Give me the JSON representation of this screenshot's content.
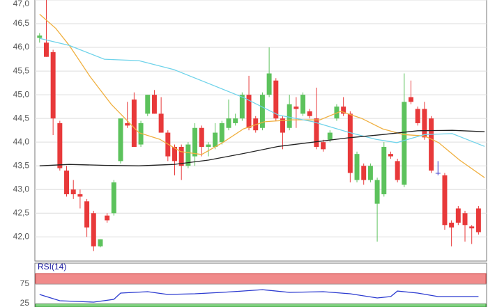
{
  "chart_data": [
    {
      "type": "candlestick",
      "xlim": [
        -0.7,
        66.2
      ],
      "ylim": [
        41.49,
        47.0
      ],
      "yticks": [
        {
          "value": 47.0,
          "label": "47,0"
        },
        {
          "value": 46.5,
          "label": "46,5"
        },
        {
          "value": 46.0,
          "label": "46,0"
        },
        {
          "value": 45.5,
          "label": "45,5"
        },
        {
          "value": 45.0,
          "label": "45,0"
        },
        {
          "value": 44.5,
          "label": "44,5"
        },
        {
          "value": 44.0,
          "label": "44,0"
        },
        {
          "value": 43.5,
          "label": "43,5"
        },
        {
          "value": 43.0,
          "label": "43,0"
        },
        {
          "value": 42.5,
          "label": "42,5"
        },
        {
          "value": 42.0,
          "label": "42,0"
        }
      ],
      "grid": true,
      "up_color": "#5cc25c",
      "down_color": "#e8393a",
      "flat_color": "#3a3acc",
      "open": [
        46.2,
        46.1,
        45.9,
        44.4,
        43.4,
        43.0,
        42.9,
        42.75,
        42.5,
        41.8,
        42.45,
        42.5,
        43.6,
        44.4,
        44.9,
        43.95,
        44.6,
        45.0,
        44.6,
        44.2,
        43.9,
        43.9,
        43.5,
        43.7,
        44.3,
        43.9,
        43.9,
        44.0,
        44.3,
        44.4,
        44.5,
        45.0,
        44.5,
        44.3,
        45.0,
        45.3,
        44.5,
        44.3,
        44.75,
        44.6,
        44.65,
        44.5,
        44.0,
        44.05,
        44.5,
        44.75,
        44.6,
        43.2,
        43.5,
        43.2,
        42.7,
        42.9,
        43.75,
        43.6,
        43.1,
        44.95,
        44.7,
        44.7,
        44.5,
        43.35,
        43.3,
        42.3,
        42.6,
        42.5,
        42.22,
        42.6
      ],
      "high": [
        46.3,
        47.0,
        45.95,
        44.45,
        43.5,
        43.2,
        43.0,
        42.8,
        42.55,
        41.95,
        42.5,
        43.2,
        44.5,
        44.85,
        45.05,
        44.45,
        45.0,
        45.1,
        44.95,
        44.25,
        43.95,
        43.95,
        44.0,
        44.4,
        44.35,
        44.0,
        44.4,
        44.45,
        44.9,
        44.6,
        45.05,
        45.4,
        44.55,
        45.05,
        46.0,
        45.35,
        44.55,
        45.0,
        44.95,
        45.05,
        44.7,
        45.15,
        44.05,
        44.25,
        44.8,
        44.95,
        44.65,
        43.8,
        43.55,
        43.55,
        43.25,
        44.0,
        43.8,
        43.65,
        45.45,
        45.3,
        44.75,
        44.85,
        44.55,
        43.6,
        43.35,
        42.35,
        42.65,
        42.55,
        42.25,
        42.65
      ],
      "low": [
        46.1,
        45.8,
        44.15,
        43.4,
        42.85,
        42.8,
        42.6,
        42.0,
        41.7,
        41.78,
        42.3,
        42.45,
        43.55,
        44.3,
        43.9,
        43.9,
        44.55,
        44.6,
        44.2,
        43.6,
        43.3,
        43.2,
        43.45,
        43.5,
        43.7,
        43.7,
        43.85,
        43.95,
        44.25,
        44.35,
        44.45,
        44.25,
        44.2,
        44.25,
        44.95,
        44.45,
        43.85,
        44.25,
        44.3,
        44.55,
        44.5,
        43.85,
        43.8,
        44.0,
        44.45,
        44.55,
        43.15,
        43.15,
        43.1,
        43.15,
        41.9,
        42.85,
        43.65,
        43.15,
        43.05,
        44.8,
        44.35,
        44.05,
        43.35,
        43.3,
        42.15,
        41.8,
        42.25,
        41.9,
        41.85,
        42.05
      ],
      "close": [
        46.25,
        45.8,
        44.5,
        43.45,
        42.9,
        42.9,
        42.85,
        42.2,
        41.8,
        41.95,
        42.35,
        43.15,
        44.5,
        44.35,
        43.9,
        44.4,
        45.0,
        44.6,
        44.2,
        43.7,
        43.6,
        43.5,
        43.95,
        44.3,
        43.9,
        43.95,
        44.2,
        44.4,
        44.5,
        44.5,
        45.0,
        44.3,
        44.25,
        45.0,
        45.45,
        44.5,
        44.2,
        44.8,
        44.7,
        45.0,
        44.55,
        43.9,
        43.85,
        44.2,
        44.75,
        44.6,
        43.35,
        43.75,
        43.2,
        43.5,
        43.2,
        43.9,
        43.7,
        43.2,
        44.85,
        44.85,
        44.4,
        44.1,
        43.4,
        43.35,
        42.25,
        42.2,
        42.3,
        42.25,
        42.18,
        42.1
      ],
      "lines": [
        {
          "color": "#f0b040",
          "x": [
            0,
            2.4,
            4.4,
            7.5,
            10.6,
            14.7,
            17.8,
            20.9,
            24,
            27.1,
            30.2,
            33.3,
            37.4,
            41.5,
            44.6,
            47.7,
            50.8,
            53.9,
            57,
            59.1,
            62.2,
            65.9
          ],
          "values": [
            46.7,
            46.4,
            46.04,
            45.38,
            44.8,
            44.2,
            44.06,
            43.8,
            43.74,
            43.99,
            44.28,
            44.43,
            44.47,
            44.47,
            44.65,
            44.5,
            44.28,
            44.16,
            44.13,
            43.99,
            43.62,
            43.25
          ]
        },
        {
          "color": "#6fd3ea",
          "x": [
            0,
            4.4,
            9.6,
            14.7,
            19.9,
            25,
            30.2,
            35.4,
            40.5,
            45.7,
            49.8,
            52.9,
            57,
            61.1,
            65.9
          ],
          "values": [
            46.19,
            46.04,
            45.75,
            45.72,
            45.53,
            45.24,
            44.94,
            44.57,
            44.43,
            44.21,
            44.06,
            43.99,
            44.16,
            44.18,
            43.91
          ]
        },
        {
          "color": "#222222",
          "x": [
            0,
            4.4,
            9.6,
            14.7,
            19.9,
            25,
            30.2,
            35.4,
            40.5,
            45.7,
            50.8,
            56,
            61.1,
            65.9
          ],
          "values": [
            43.5,
            43.53,
            43.51,
            43.5,
            43.53,
            43.62,
            43.76,
            43.91,
            44.0,
            44.09,
            44.16,
            44.24,
            44.25,
            44.22
          ]
        }
      ]
    },
    {
      "type": "line",
      "title": "RSI(14)",
      "xlim": [
        -0.7,
        66.2
      ],
      "ylim": [
        16,
        102
      ],
      "yticks": [
        75,
        25
      ],
      "upper_zone_color": "#f08a8a",
      "lower_zone_color": "#7fd17f",
      "color": "#2b3ad0",
      "x": [
        0,
        3,
        8,
        11,
        12,
        16,
        19,
        23,
        27,
        30,
        33,
        37,
        42,
        46,
        50,
        52,
        53,
        56,
        59,
        65
      ],
      "values": [
        48.2,
        32.1,
        28.6,
        35.7,
        51.8,
        55.4,
        48.2,
        50,
        53.6,
        57.1,
        60.7,
        53.6,
        55.4,
        50,
        39.3,
        42.9,
        57.1,
        51.8,
        42.9,
        42.9
      ]
    }
  ]
}
